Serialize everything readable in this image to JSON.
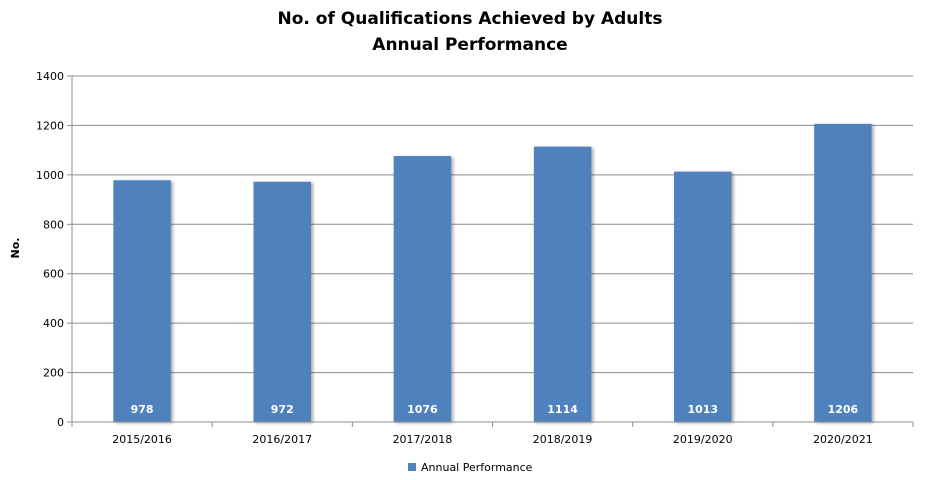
{
  "chart_data": {
    "type": "bar",
    "title": "No. of Qualifications Achieved by Adults",
    "subtitle": "Annual Performance",
    "xlabel": "",
    "ylabel": "No.",
    "categories": [
      "2015/2016",
      "2016/2017",
      "2017/2018",
      "2018/2019",
      "2019/2020",
      "2020/2021"
    ],
    "series": [
      {
        "name": "Annual Performance",
        "color": "#4f81bd",
        "values": [
          978,
          972,
          1076,
          1114,
          1013,
          1206
        ]
      }
    ],
    "ylim": [
      0,
      1400
    ],
    "yticks": [
      0,
      200,
      400,
      600,
      800,
      1000,
      1200,
      1400
    ],
    "grid": true,
    "data_labels": true,
    "legend": "bottom"
  }
}
